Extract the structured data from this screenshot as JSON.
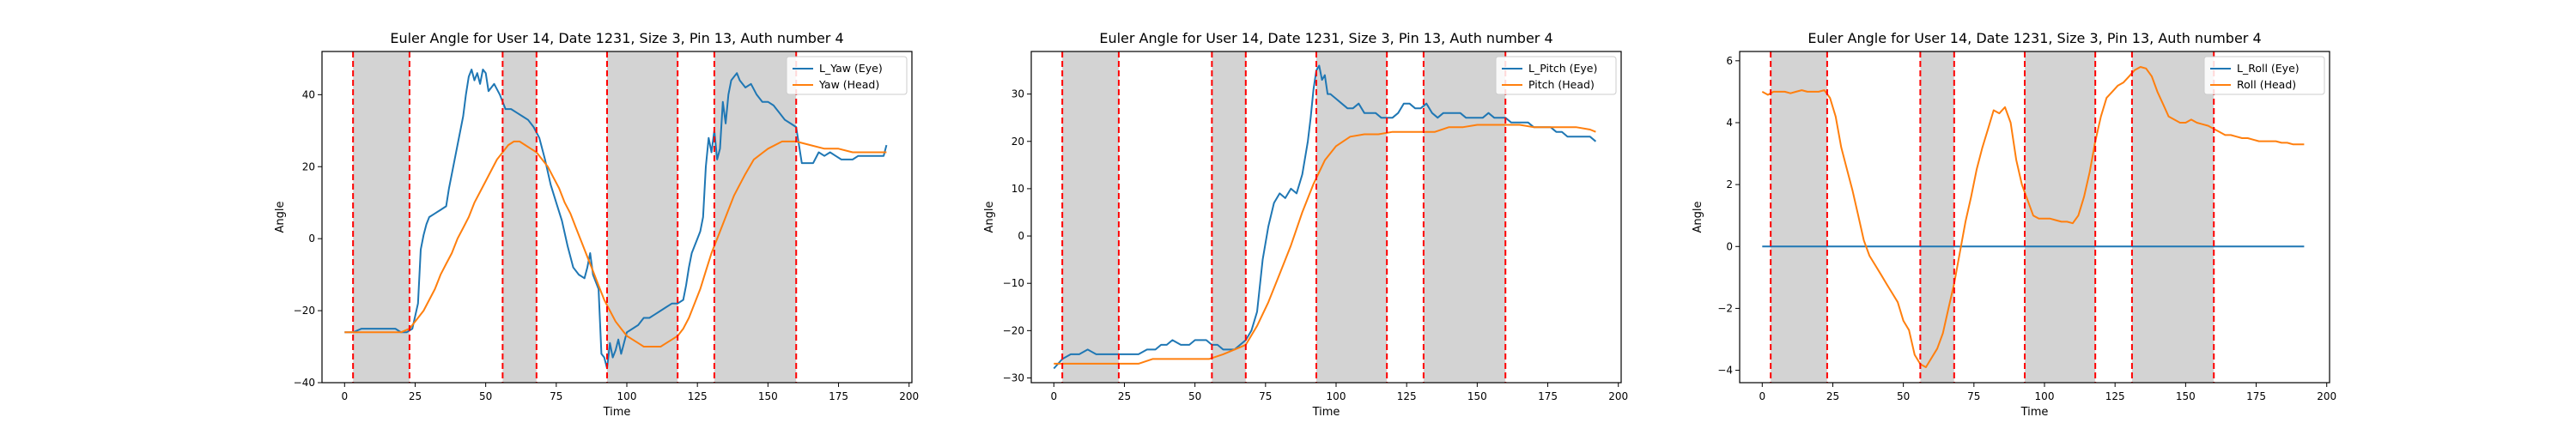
{
  "chart_data": [
    {
      "type": "line",
      "title": "Euler Angle for User 14, Date 1231, Size 3, Pin 13, Auth number 4",
      "xlabel": "Time",
      "ylabel": "Angle",
      "xlim": [
        -8,
        201
      ],
      "ylim": [
        -40,
        52
      ],
      "xticks": [
        0,
        25,
        50,
        75,
        100,
        125,
        150,
        175,
        200
      ],
      "yticks": [
        -40,
        -20,
        0,
        20,
        40
      ],
      "legend_position": "upper right",
      "shaded_intervals": [
        [
          3,
          23
        ],
        [
          56,
          68
        ],
        [
          93,
          118
        ],
        [
          131,
          160
        ]
      ],
      "boundary_lines": [
        3,
        23,
        56,
        68,
        93,
        118,
        131,
        160
      ],
      "series": [
        {
          "name": "L_Yaw (Eye)",
          "color": "#1f77b4",
          "x": [
            0,
            3,
            6,
            9,
            12,
            15,
            18,
            20,
            22,
            24,
            26,
            27,
            28,
            29,
            30,
            32,
            34,
            36,
            37,
            38,
            40,
            42,
            43,
            44,
            45,
            46,
            47,
            48,
            49,
            50,
            51,
            52,
            53,
            55,
            57,
            59,
            61,
            63,
            65,
            67,
            69,
            71,
            73,
            75,
            77,
            79,
            81,
            83,
            85,
            86,
            87,
            88,
            90,
            91,
            92,
            93,
            94,
            95,
            96,
            97,
            98,
            100,
            102,
            104,
            106,
            108,
            110,
            112,
            114,
            116,
            118,
            120,
            121,
            122,
            123,
            124,
            125,
            126,
            127,
            128,
            129,
            130,
            131,
            132,
            133,
            134,
            135,
            136,
            137,
            138,
            139,
            140,
            142,
            144,
            146,
            148,
            150,
            152,
            154,
            156,
            158,
            160,
            162,
            164,
            166,
            168,
            170,
            172,
            174,
            176,
            178,
            180,
            182,
            184,
            186,
            188,
            190,
            191,
            192
          ],
          "y": [
            -26,
            -26,
            -25,
            -25,
            -25,
            -25,
            -25,
            -26,
            -26,
            -25,
            -18,
            -3,
            1,
            4,
            6,
            7,
            8,
            9,
            14,
            18,
            26,
            34,
            40,
            45,
            47,
            44,
            46,
            43,
            47,
            46,
            41,
            42,
            43,
            40,
            36,
            36,
            35,
            34,
            33,
            31,
            28,
            22,
            15,
            10,
            5,
            -2,
            -8,
            -10,
            -11,
            -8,
            -4,
            -10,
            -14,
            -32,
            -33,
            -36,
            -29,
            -33,
            -31,
            -28,
            -32,
            -26,
            -25,
            -24,
            -22,
            -22,
            -21,
            -20,
            -19,
            -18,
            -18,
            -17,
            -13,
            -8,
            -4,
            -2,
            0,
            2,
            6,
            20,
            28,
            24,
            30,
            22,
            25,
            38,
            32,
            40,
            44,
            45,
            46,
            44,
            42,
            43,
            40,
            38,
            38,
            37,
            35,
            33,
            32,
            31,
            21,
            21,
            21,
            24,
            23,
            24,
            23,
            22,
            22,
            22,
            23,
            23,
            23,
            23,
            23,
            23,
            26
          ]
        },
        {
          "name": "Yaw (Head)",
          "color": "#ff7f0e",
          "x": [
            0,
            5,
            10,
            15,
            20,
            23,
            26,
            28,
            30,
            32,
            34,
            36,
            38,
            40,
            42,
            44,
            46,
            48,
            50,
            52,
            54,
            56,
            58,
            60,
            62,
            64,
            66,
            68,
            70,
            72,
            74,
            76,
            78,
            80,
            82,
            84,
            86,
            88,
            90,
            92,
            94,
            96,
            98,
            100,
            102,
            104,
            106,
            108,
            110,
            112,
            114,
            116,
            118,
            120,
            122,
            124,
            126,
            128,
            130,
            132,
            134,
            136,
            138,
            140,
            142,
            145,
            150,
            155,
            160,
            165,
            170,
            175,
            180,
            185,
            190,
            192
          ],
          "y": [
            -26,
            -26,
            -26,
            -26,
            -26,
            -25,
            -22,
            -20,
            -17,
            -14,
            -10,
            -7,
            -4,
            0,
            3,
            6,
            10,
            13,
            16,
            19,
            22,
            24,
            26,
            27,
            27,
            26,
            25,
            24,
            22,
            20,
            17,
            14,
            10,
            7,
            3,
            -1,
            -5,
            -9,
            -13,
            -17,
            -20,
            -23,
            -25,
            -27,
            -28,
            -29,
            -30,
            -30,
            -30,
            -30,
            -29,
            -28,
            -27,
            -25,
            -22,
            -18,
            -14,
            -9,
            -4,
            0,
            4,
            8,
            12,
            15,
            18,
            22,
            25,
            27,
            27,
            26,
            25,
            25,
            24,
            24,
            24,
            24
          ]
        }
      ]
    },
    {
      "type": "line",
      "title": "Euler Angle for User 14, Date 1231, Size 3, Pin 13, Auth number 4",
      "xlabel": "Time",
      "ylabel": "Angle",
      "xlim": [
        -8,
        201
      ],
      "ylim": [
        -31,
        39
      ],
      "xticks": [
        0,
        25,
        50,
        75,
        100,
        125,
        150,
        175,
        200
      ],
      "yticks": [
        -30,
        -20,
        -10,
        0,
        10,
        20,
        30
      ],
      "legend_position": "upper right",
      "shaded_intervals": [
        [
          3,
          23
        ],
        [
          56,
          68
        ],
        [
          93,
          118
        ],
        [
          131,
          160
        ]
      ],
      "boundary_lines": [
        3,
        23,
        56,
        68,
        93,
        118,
        131,
        160
      ],
      "series": [
        {
          "name": "L_Pitch (Eye)",
          "color": "#1f77b4",
          "x": [
            0,
            3,
            6,
            9,
            12,
            15,
            18,
            21,
            24,
            27,
            30,
            33,
            36,
            38,
            40,
            42,
            45,
            48,
            50,
            52,
            54,
            56,
            58,
            60,
            62,
            64,
            66,
            68,
            70,
            72,
            74,
            76,
            78,
            80,
            82,
            84,
            86,
            88,
            90,
            91,
            92,
            93,
            94,
            95,
            96,
            97,
            98,
            100,
            102,
            104,
            106,
            108,
            110,
            112,
            114,
            116,
            118,
            120,
            122,
            124,
            126,
            128,
            130,
            132,
            134,
            136,
            138,
            140,
            142,
            144,
            146,
            148,
            150,
            152,
            154,
            156,
            158,
            160,
            162,
            164,
            166,
            168,
            170,
            172,
            174,
            176,
            178,
            180,
            182,
            184,
            186,
            188,
            190,
            192
          ],
          "y": [
            -28,
            -26,
            -25,
            -25,
            -24,
            -25,
            -25,
            -25,
            -25,
            -25,
            -25,
            -24,
            -24,
            -23,
            -23,
            -22,
            -23,
            -23,
            -22,
            -22,
            -22,
            -23,
            -23,
            -24,
            -24,
            -24,
            -23,
            -22,
            -20,
            -16,
            -5,
            2,
            7,
            9,
            8,
            10,
            9,
            13,
            20,
            25,
            31,
            35,
            36,
            33,
            34,
            30,
            30,
            29,
            28,
            27,
            27,
            28,
            26,
            26,
            26,
            25,
            25,
            25,
            26,
            28,
            28,
            27,
            27,
            28,
            26,
            25,
            26,
            26,
            26,
            26,
            25,
            25,
            25,
            25,
            26,
            25,
            25,
            25,
            24,
            24,
            24,
            24,
            23,
            23,
            23,
            23,
            22,
            22,
            21,
            21,
            21,
            21,
            21,
            20
          ]
        },
        {
          "name": "Pitch (Head)",
          "color": "#ff7f0e",
          "x": [
            0,
            5,
            10,
            15,
            20,
            25,
            30,
            35,
            40,
            45,
            50,
            55,
            60,
            64,
            68,
            72,
            76,
            80,
            84,
            88,
            92,
            96,
            100,
            105,
            110,
            115,
            120,
            125,
            130,
            135,
            140,
            145,
            150,
            155,
            160,
            165,
            170,
            175,
            180,
            185,
            190,
            192
          ],
          "y": [
            -27,
            -27,
            -27,
            -27,
            -27,
            -27,
            -27,
            -26,
            -26,
            -26,
            -26,
            -26,
            -25,
            -24,
            -23,
            -19,
            -14,
            -8,
            -2,
            5,
            11,
            16,
            19,
            21,
            21.5,
            21.5,
            22,
            22,
            22,
            22,
            23,
            23,
            23.5,
            23.5,
            23.5,
            23.5,
            23,
            23,
            23,
            23,
            22.5,
            22
          ]
        }
      ]
    },
    {
      "type": "line",
      "title": "Euler Angle for User 14, Date 1231, Size 3, Pin 13, Auth number 4",
      "xlabel": "Time",
      "ylabel": "Angle",
      "xlim": [
        -8,
        201
      ],
      "ylim": [
        -4.4,
        6.3
      ],
      "xticks": [
        0,
        25,
        50,
        75,
        100,
        125,
        150,
        175,
        200
      ],
      "yticks": [
        -4,
        -2,
        0,
        2,
        4,
        6
      ],
      "legend_position": "upper right",
      "shaded_intervals": [
        [
          3,
          23
        ],
        [
          56,
          68
        ],
        [
          93,
          118
        ],
        [
          131,
          160
        ]
      ],
      "boundary_lines": [
        3,
        23,
        56,
        68,
        93,
        118,
        131,
        160
      ],
      "series": [
        {
          "name": "L_Roll (Eye)",
          "color": "#1f77b4",
          "x": [
            0,
            192
          ],
          "y": [
            0,
            0
          ]
        },
        {
          "name": "Roll (Head)",
          "color": "#ff7f0e",
          "x": [
            0,
            2,
            4,
            6,
            8,
            10,
            12,
            14,
            16,
            18,
            20,
            22,
            24,
            26,
            28,
            30,
            32,
            34,
            36,
            38,
            40,
            42,
            44,
            46,
            48,
            50,
            52,
            54,
            56,
            58,
            60,
            62,
            64,
            66,
            68,
            70,
            72,
            74,
            76,
            78,
            80,
            82,
            84,
            86,
            88,
            90,
            92,
            94,
            96,
            98,
            100,
            102,
            104,
            106,
            108,
            110,
            112,
            114,
            116,
            118,
            120,
            122,
            124,
            126,
            128,
            130,
            132,
            134,
            136,
            138,
            140,
            142,
            144,
            146,
            148,
            150,
            152,
            154,
            156,
            158,
            160,
            162,
            164,
            166,
            168,
            170,
            172,
            174,
            176,
            178,
            180,
            182,
            184,
            186,
            188,
            190,
            192
          ],
          "y": [
            5.0,
            4.9,
            5.0,
            5.0,
            5.0,
            4.95,
            5.0,
            5.05,
            5.0,
            5.0,
            5.0,
            5.05,
            4.8,
            4.2,
            3.2,
            2.5,
            1.8,
            1.0,
            0.2,
            -0.3,
            -0.6,
            -0.9,
            -1.2,
            -1.5,
            -1.8,
            -2.4,
            -2.7,
            -3.5,
            -3.8,
            -3.9,
            -3.6,
            -3.3,
            -2.8,
            -2.0,
            -1.2,
            -0.2,
            0.8,
            1.6,
            2.5,
            3.2,
            3.8,
            4.4,
            4.3,
            4.5,
            4.0,
            2.8,
            2.0,
            1.5,
            1.0,
            0.9,
            0.9,
            0.9,
            0.85,
            0.8,
            0.8,
            0.75,
            1.0,
            1.6,
            2.4,
            3.4,
            4.2,
            4.8,
            5.0,
            5.2,
            5.3,
            5.5,
            5.7,
            5.8,
            5.75,
            5.5,
            5.0,
            4.6,
            4.2,
            4.1,
            4.0,
            4.0,
            4.1,
            4.0,
            3.95,
            3.9,
            3.8,
            3.7,
            3.6,
            3.6,
            3.55,
            3.5,
            3.5,
            3.45,
            3.4,
            3.4,
            3.4,
            3.4,
            3.35,
            3.35,
            3.3,
            3.3,
            3.3
          ]
        }
      ]
    }
  ]
}
